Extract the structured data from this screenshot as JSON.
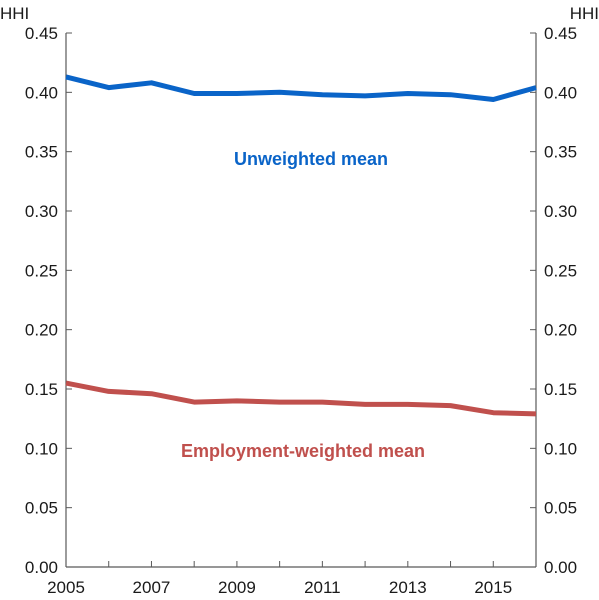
{
  "chart_data": {
    "type": "line",
    "y_unit_left": "HHI",
    "y_unit_right": "HHI",
    "x": [
      2005,
      2006,
      2007,
      2008,
      2009,
      2010,
      2011,
      2012,
      2013,
      2014,
      2015,
      2016
    ],
    "xlim": [
      2005,
      2016
    ],
    "x_tick_labels": [
      "2005",
      "2007",
      "2009",
      "2011",
      "2013",
      "2015"
    ],
    "ylim": [
      0,
      0.45
    ],
    "y_tick_labels": [
      "0.00",
      "0.05",
      "0.10",
      "0.15",
      "0.20",
      "0.25",
      "0.30",
      "0.35",
      "0.40",
      "0.45"
    ],
    "grid": false,
    "series": [
      {
        "name": "Unweighted mean",
        "color": "#0a64c8",
        "values": [
          0.413,
          0.404,
          0.408,
          0.399,
          0.399,
          0.4,
          0.398,
          0.397,
          0.399,
          0.398,
          0.394,
          0.404
        ]
      },
      {
        "name": "Employment-weighted mean",
        "color": "#c0504d",
        "values": [
          0.155,
          0.148,
          0.146,
          0.139,
          0.14,
          0.139,
          0.139,
          0.137,
          0.137,
          0.136,
          0.13,
          0.129
        ]
      }
    ]
  }
}
